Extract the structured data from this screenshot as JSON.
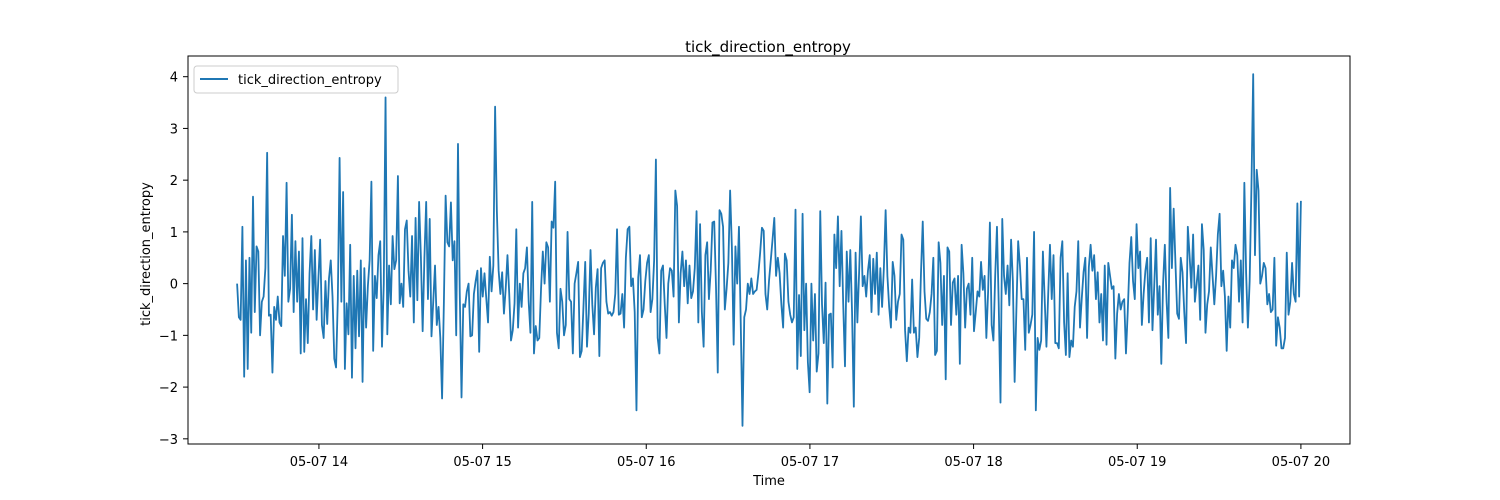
{
  "chart_data": {
    "type": "line",
    "title": "tick_direction_entropy",
    "xlabel": "Time",
    "ylabel": "tick_direction_entropy",
    "x_start": "05-07 13:30",
    "x_end": "05-07 20:00",
    "x_ticks": [
      "05-07 14",
      "05-07 15",
      "05-07 16",
      "05-07 17",
      "05-07 18",
      "05-07 19",
      "05-07 20"
    ],
    "x_tick_hours": [
      14,
      15,
      16,
      17,
      18,
      19,
      20
    ],
    "x_range_hours": [
      13.2,
      20.3
    ],
    "ylim": [
      -3.1,
      4.4
    ],
    "y_ticks": [
      -3,
      -2,
      -1,
      0,
      1,
      2,
      3,
      4
    ],
    "y_tick_labels": [
      "−3",
      "−2",
      "−1",
      "0",
      "1",
      "2",
      "3",
      "4"
    ],
    "grid": false,
    "legend_position": "top-left",
    "series": [
      {
        "name": "tick_direction_entropy",
        "color": "#1f77b4",
        "values": [
          0.0,
          -0.65,
          -0.7,
          1.1,
          -1.8,
          0.45,
          -1.65,
          0.5,
          -0.95,
          1.68,
          -0.55,
          0.72,
          0.62,
          -1.0,
          -0.35,
          -0.25,
          0.3,
          2.53,
          -0.62,
          -0.6,
          -1.72,
          -0.45,
          -0.7,
          -0.25,
          -0.75,
          -0.82,
          0.92,
          0.15,
          1.95,
          -0.35,
          -0.1,
          1.33,
          -0.55,
          0.82,
          -0.35,
          0.62,
          -1.35,
          0.88,
          -1.32,
          -0.3,
          -1.15,
          0.2,
          0.92,
          -0.5,
          0.65,
          -0.7,
          0.1,
          0.85,
          -0.8,
          -1.05,
          0.05,
          -0.78,
          0.1,
          0.45,
          -0.25,
          -1.45,
          -1.62,
          -0.3,
          2.43,
          -0.35,
          1.77,
          -1.65,
          -0.38,
          -0.98,
          0.75,
          -1.82,
          0.15,
          -1.25,
          0.25,
          -1.02,
          0.45,
          -1.9,
          0.3,
          -0.85,
          -0.05,
          0.45,
          1.97,
          -1.3,
          0.15,
          -0.28,
          0.55,
          0.82,
          -1.22,
          0.0,
          3.6,
          -0.98,
          0.35,
          -0.4,
          0.92,
          0.28,
          0.45,
          2.08,
          -0.38,
          0.0,
          -0.45,
          1.05,
          1.22,
          0.25,
          -0.25,
          0.92,
          -0.75,
          1.27,
          -0.32,
          1.58,
          0.52,
          -0.92,
          0.5,
          1.58,
          -0.3,
          1.25,
          -1.02,
          -0.35,
          0.35,
          -0.8,
          -0.45,
          -1.05,
          -2.22,
          -0.4,
          1.7,
          0.8,
          0.72,
          1.57,
          0.45,
          0.82,
          -1.0,
          2.7,
          -0.18,
          -2.2,
          -0.4,
          -0.45,
          -0.15,
          0.0,
          -1.02,
          -1.0,
          -0.2,
          0.05,
          0.25,
          -1.32,
          0.3,
          -0.25,
          0.2,
          -0.28,
          -0.75,
          0.52,
          -0.15,
          0.35,
          3.42,
          1.4,
          0.25,
          -0.2,
          0.22,
          -0.58,
          -0.1,
          0.55,
          -0.2,
          -1.1,
          -0.9,
          -0.38,
          1.05,
          -0.85,
          0.0,
          -0.45,
          0.2,
          0.3,
          0.7,
          -0.35,
          -0.95,
          1.58,
          -1.35,
          -0.82,
          -1.1,
          -1.05,
          -0.1,
          0.62,
          0.0,
          0.8,
          0.7,
          -0.35,
          1.2,
          1.08,
          1.97,
          -0.95,
          -1.25,
          -0.1,
          -0.35,
          -1.0,
          -0.8,
          1.0,
          -0.3,
          -0.35,
          -1.35,
          0.0,
          0.2,
          0.42,
          -1.42,
          -1.3,
          -0.45,
          0.42,
          -1.22,
          -0.58,
          0.65,
          -0.4,
          -0.98,
          -0.08,
          0.28,
          -1.4,
          0.3,
          0.4,
          0.45,
          -0.35,
          -0.58,
          -0.55,
          -0.62,
          -0.55,
          -0.2,
          1.05,
          -0.6,
          -0.58,
          -0.2,
          -0.85,
          0.5,
          1.05,
          1.1,
          -0.05,
          0.1,
          -0.55,
          -2.45,
          0.12,
          0.55,
          -0.65,
          -0.5,
          0.05,
          0.4,
          0.55,
          -0.55,
          -0.3,
          0.45,
          2.4,
          -1.05,
          -1.35,
          0.25,
          0.35,
          -0.4,
          -1.05,
          0.0,
          0.3,
          0.25,
          -0.25,
          1.8,
          1.5,
          -0.75,
          0.2,
          0.62,
          -0.05,
          0.45,
          -0.38,
          0.35,
          -0.28,
          -0.15,
          0.3,
          1.4,
          -0.75,
          1.15,
          -0.55,
          -1.22,
          0.55,
          0.8,
          -0.3,
          0.25,
          1.18,
          1.2,
          -0.05,
          -1.72,
          1.42,
          1.35,
          1.1,
          -0.5,
          -0.1,
          0.4,
          1.8,
          0.7,
          -1.18,
          0.72,
          0.0,
          1.1,
          -0.75,
          -2.75,
          -0.65,
          -0.5,
          0.0,
          -0.2,
          0.1,
          -0.2,
          -0.15,
          -0.12,
          0.2,
          0.6,
          1.08,
          1.02,
          -0.2,
          -0.5,
          0.05,
          0.45,
          0.85,
          1.27,
          0.15,
          0.5,
          0.2,
          -0.4,
          -0.85,
          0.58,
          0.45,
          -0.35,
          -0.6,
          -0.75,
          -0.65,
          1.43,
          -1.65,
          -0.22,
          -1.4,
          1.35,
          -0.9,
          0.0,
          -1.52,
          -2.1,
          0.0,
          -1.1,
          -0.2,
          -1.7,
          -1.35,
          1.4,
          -0.4,
          -1.15,
          0.02,
          -2.32,
          -0.6,
          -0.58,
          -1.62,
          0.95,
          0.3,
          1.3,
          -0.05,
          1.02,
          -0.4,
          -1.6,
          0.62,
          -0.35,
          0.65,
          -0.55,
          -2.38,
          0.6,
          -0.75,
          0.22,
          1.3,
          -0.05,
          0.15,
          -0.25,
          0.25,
          0.55,
          -0.55,
          0.48,
          -0.2,
          0.6,
          -0.6,
          0.3,
          -0.45,
          0.3,
          1.42,
          0.15,
          -0.45,
          -0.85,
          0.42,
          0.15,
          -0.7,
          -0.35,
          -0.2,
          0.95,
          0.85,
          -0.9,
          -1.5,
          -0.85,
          -0.95,
          0.08,
          -0.95,
          -0.85,
          -1.42,
          -1.05,
          0.2,
          1.2,
          -0.15,
          -0.68,
          -0.72,
          -0.55,
          -0.2,
          0.5,
          -1.38,
          -1.3,
          0.8,
          0.4,
          -0.8,
          0.15,
          -1.85,
          0.7,
          0.62,
          -0.8,
          0.02,
          0.1,
          -0.6,
          0.15,
          -1.55,
          0.75,
          0.2,
          -0.85,
          -0.1,
          0.0,
          -0.6,
          0.5,
          -0.92,
          -0.55,
          -0.15,
          -0.25,
          0.42,
          -0.12,
          0.15,
          -1.05,
          -0.15,
          1.18,
          -0.8,
          -1.1,
          0.15,
          1.1,
          -0.4,
          -2.3,
          1.25,
          0.15,
          -0.2,
          0.35,
          -0.42,
          0.85,
          0.05,
          -1.9,
          -0.5,
          0.82,
          0.35,
          -0.3,
          -0.3,
          -1.28,
          0.5,
          -0.95,
          -0.8,
          -0.6,
          1.0,
          -2.45,
          -1.05,
          -1.28,
          -1.1,
          0.62,
          -0.3,
          -1.22,
          -0.2,
          0.75,
          -0.3,
          0.55,
          -1.15,
          -1.15,
          -1.25,
          0.5,
          0.82,
          -0.75,
          -1.38,
          0.2,
          -1.42,
          -1.1,
          -1.22,
          -0.45,
          -0.15,
          0.82,
          -0.85,
          -0.28,
          0.22,
          0.5,
          -1.05,
          0.32,
          0.75,
          0.25,
          0.55,
          -0.3,
          0.22,
          -0.75,
          -0.2,
          -1.1,
          0.35,
          -1.18,
          0.4,
          0.15,
          -0.1,
          -0.05,
          -1.45,
          -0.58,
          -0.2,
          -0.5,
          -0.35,
          -0.3,
          -1.35,
          -0.55,
          0.4,
          0.9,
          0.05,
          -0.3,
          1.15,
          0.3,
          0.62,
          -0.8,
          -0.2,
          0.25,
          0.5,
          -0.75,
          0.88,
          -0.9,
          -0.05,
          0.85,
          -0.6,
          -0.05,
          -1.55,
          0.0,
          0.75,
          -0.35,
          -1.05,
          1.85,
          0.3,
          1.45,
          0.4,
          -0.58,
          -0.68,
          0.5,
          0.22,
          -0.55,
          -1.15,
          1.1,
          0.55,
          -0.08,
          0.95,
          -0.35,
          0.0,
          0.35,
          -0.7,
          1.15,
          0.65,
          -0.95,
          -0.4,
          -0.15,
          0.7,
          0.15,
          -0.4,
          0.15,
          0.95,
          1.35,
          -0.05,
          0.25,
          -0.25,
          -1.3,
          -0.25,
          -0.85,
          0.45,
          0.3,
          0.75,
          0.55,
          -0.35,
          0.45,
          -0.75,
          1.95,
          0.2,
          -0.85,
          0.05,
          1.85,
          4.05,
          0.55,
          2.2,
          1.8,
          0.0,
          0.15,
          0.4,
          0.3,
          -0.4,
          -0.2,
          -0.55,
          -0.5,
          0.5,
          -1.2,
          -0.65,
          -0.85,
          -1.25,
          -1.25,
          -1.05,
          0.6,
          -0.6,
          -0.35,
          0.4,
          -0.2,
          -0.35,
          1.55,
          -0.25,
          1.6
        ]
      }
    ]
  }
}
